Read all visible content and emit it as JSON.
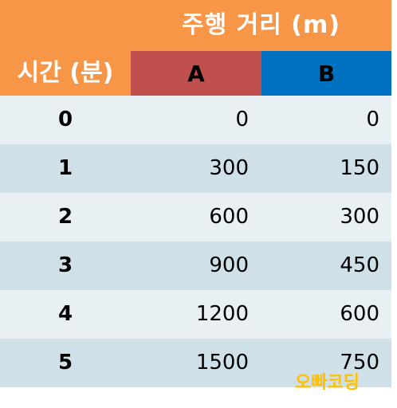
{
  "header": {
    "title": "주행 거리 (m)",
    "time_label": "시간 (분)",
    "col_a": "A",
    "col_b": "B"
  },
  "rows": [
    {
      "time": "0",
      "a": "0",
      "b": "0"
    },
    {
      "time": "1",
      "a": "300",
      "b": "150"
    },
    {
      "time": "2",
      "a": "600",
      "b": "300"
    },
    {
      "time": "3",
      "a": "900",
      "b": "450"
    },
    {
      "time": "4",
      "a": "1200",
      "b": "600"
    },
    {
      "time": "5",
      "a": "1500",
      "b": "750"
    }
  ],
  "watermark": "오빠코딩",
  "colors": {
    "header_orange": "#f79646",
    "col_a_red": "#c0504d",
    "col_b_blue": "#0070c0",
    "row_light": "#e8f0f4",
    "row_dark": "#cfe0e8",
    "watermark_yellow": "#ffc000"
  }
}
